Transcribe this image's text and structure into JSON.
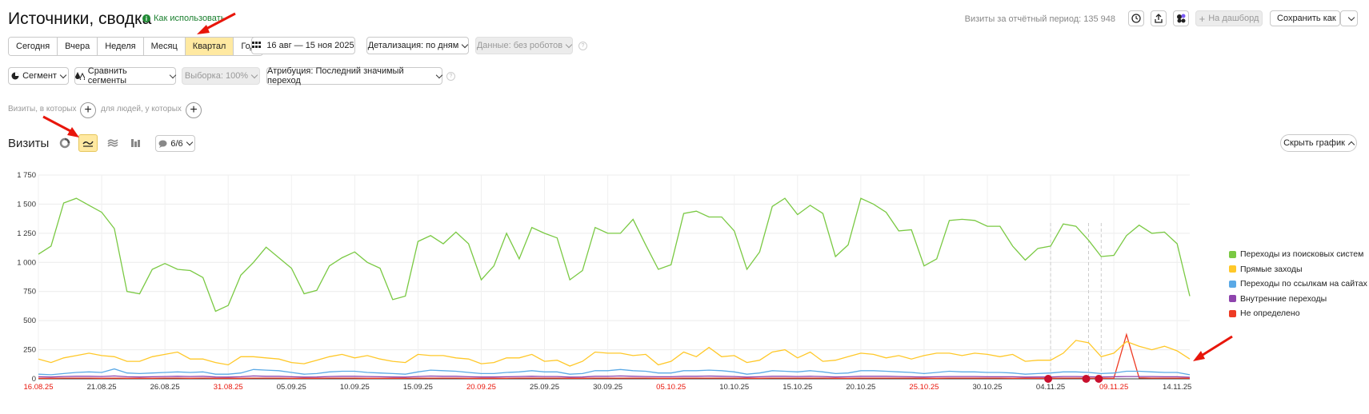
{
  "header": {
    "title": "Источники, сводка",
    "how_to_use": "Как использовать",
    "visits_period": "Визиты за отчётный период: 135 948",
    "to_dashboard": "На дашборд",
    "save_as": "Сохранить как"
  },
  "period_tabs": [
    {
      "label": "Сегодня"
    },
    {
      "label": "Вчера"
    },
    {
      "label": "Неделя"
    },
    {
      "label": "Месяц"
    },
    {
      "label": "Квартал",
      "active": true
    },
    {
      "label": "Год"
    }
  ],
  "date_range": "16 авг — 15 ноя 2025",
  "detail": "Детализация: по дням",
  "data_filter": "Данные: без роботов",
  "segment": "Сегмент",
  "compare_segments": "Сравнить сегменты",
  "sample": "Выборка: 100%",
  "attribution": "Атрибуция: Последний значимый переход",
  "filters": {
    "visits_where": "Визиты, в которых",
    "people_where": "для людей, у которых"
  },
  "chart_section": {
    "title": "Визиты",
    "series_counter": "6/6",
    "hide_chart": "Скрыть график"
  },
  "colors": {
    "search": "#7ac943",
    "direct": "#ffc829",
    "referral": "#5aa9e6",
    "internal": "#8e44ad",
    "unknown": "#ee3b24",
    "accent": "#ffe9a1"
  },
  "chart_data": {
    "type": "line",
    "ylim": [
      0,
      1750
    ],
    "yticks": [
      "1 750",
      "1 500",
      "1 250",
      "1 000",
      "750",
      "500",
      "250",
      "0"
    ],
    "xtick_labels": [
      {
        "label": "16.08.25",
        "red": true
      },
      {
        "label": "21.08.25"
      },
      {
        "label": "26.08.25"
      },
      {
        "label": "31.08.25",
        "red": true
      },
      {
        "label": "05.09.25"
      },
      {
        "label": "10.09.25"
      },
      {
        "label": "15.09.25"
      },
      {
        "label": "20.09.25",
        "red": true
      },
      {
        "label": "25.09.25"
      },
      {
        "label": "30.09.25"
      },
      {
        "label": "05.10.25",
        "red": true
      },
      {
        "label": "10.10.25"
      },
      {
        "label": "15.10.25"
      },
      {
        "label": "20.10.25"
      },
      {
        "label": "25.10.25",
        "red": true
      },
      {
        "label": "30.10.25"
      },
      {
        "label": "04.11.25"
      },
      {
        "label": "09.11.25",
        "red": true
      },
      {
        "label": "14.11.25"
      }
    ],
    "series": [
      {
        "name": "Переходы из поисковых систем",
        "color": "#7ac943",
        "values": [
          1070,
          1140,
          1510,
          1550,
          1490,
          1430,
          1290,
          750,
          730,
          940,
          990,
          940,
          930,
          870,
          580,
          630,
          890,
          1000,
          1130,
          1040,
          950,
          730,
          760,
          970,
          1040,
          1090,
          1000,
          950,
          680,
          710,
          1180,
          1230,
          1160,
          1260,
          1160,
          850,
          970,
          1250,
          1030,
          1300,
          1250,
          1210,
          850,
          930,
          1300,
          1250,
          1250,
          1370,
          1150,
          940,
          980,
          1420,
          1440,
          1390,
          1390,
          1270,
          940,
          1090,
          1480,
          1550,
          1410,
          1490,
          1420,
          1050,
          1150,
          1550,
          1500,
          1430,
          1270,
          1280,
          970,
          1030,
          1360,
          1370,
          1360,
          1310,
          1310,
          1140,
          1020,
          1120,
          1140,
          1330,
          1310,
          1190,
          1050,
          1060,
          1230,
          1320,
          1250,
          1260,
          1160,
          710
        ]
      },
      {
        "name": "Прямые заходы",
        "color": "#ffc829",
        "values": [
          170,
          140,
          180,
          200,
          220,
          200,
          190,
          150,
          150,
          190,
          210,
          230,
          170,
          170,
          140,
          120,
          190,
          190,
          180,
          170,
          140,
          130,
          160,
          190,
          210,
          180,
          200,
          170,
          150,
          140,
          210,
          200,
          200,
          180,
          170,
          130,
          140,
          180,
          180,
          210,
          150,
          160,
          110,
          150,
          230,
          220,
          220,
          200,
          210,
          120,
          150,
          230,
          190,
          270,
          190,
          200,
          140,
          160,
          230,
          250,
          180,
          230,
          150,
          160,
          190,
          220,
          210,
          180,
          200,
          170,
          200,
          220,
          220,
          200,
          220,
          210,
          190,
          210,
          150,
          160,
          160,
          220,
          330,
          310,
          190,
          220,
          320,
          280,
          250,
          280,
          240,
          170
        ]
      },
      {
        "name": "Переходы по ссылкам на сайтах",
        "color": "#5aa9e6",
        "values": [
          40,
          35,
          45,
          55,
          60,
          55,
          85,
          50,
          45,
          50,
          55,
          60,
          55,
          60,
          40,
          40,
          50,
          80,
          75,
          70,
          55,
          40,
          45,
          60,
          65,
          65,
          55,
          50,
          45,
          40,
          60,
          75,
          70,
          65,
          55,
          45,
          45,
          55,
          60,
          70,
          60,
          60,
          40,
          45,
          70,
          70,
          80,
          70,
          65,
          50,
          50,
          70,
          70,
          75,
          70,
          60,
          40,
          50,
          70,
          65,
          60,
          70,
          60,
          45,
          50,
          70,
          70,
          65,
          60,
          55,
          45,
          55,
          65,
          60,
          60,
          55,
          55,
          50,
          40,
          45,
          50,
          60,
          60,
          55,
          45,
          50,
          65,
          65,
          60,
          55,
          55,
          35
        ]
      },
      {
        "name": "Внутренние переходы",
        "color": "#8e44ad",
        "values": [
          18,
          16,
          20,
          22,
          22,
          20,
          25,
          18,
          16,
          18,
          20,
          22,
          20,
          22,
          16,
          15,
          18,
          25,
          22,
          22,
          18,
          15,
          16,
          20,
          22,
          22,
          20,
          18,
          16,
          15,
          20,
          24,
          22,
          22,
          18,
          16,
          16,
          18,
          20,
          22,
          20,
          20,
          15,
          16,
          22,
          22,
          25,
          22,
          20,
          18,
          18,
          22,
          22,
          24,
          22,
          20,
          15,
          18,
          22,
          22,
          20,
          22,
          20,
          16,
          18,
          22,
          22,
          22,
          20,
          18,
          16,
          18,
          20,
          20,
          20,
          18,
          18,
          18,
          15,
          16,
          16,
          20,
          20,
          18,
          16,
          18,
          20,
          20,
          20,
          18,
          18,
          14
        ]
      },
      {
        "name": "Не определено",
        "color": "#ee3b24",
        "values": [
          5,
          5,
          6,
          6,
          6,
          5,
          6,
          5,
          5,
          5,
          6,
          6,
          5,
          6,
          5,
          5,
          5,
          6,
          6,
          6,
          5,
          5,
          5,
          6,
          6,
          6,
          5,
          5,
          5,
          5,
          6,
          6,
          6,
          6,
          5,
          5,
          5,
          5,
          6,
          6,
          6,
          6,
          5,
          5,
          6,
          6,
          6,
          6,
          6,
          5,
          5,
          6,
          6,
          6,
          6,
          6,
          5,
          5,
          6,
          6,
          6,
          6,
          6,
          5,
          5,
          6,
          6,
          6,
          6,
          6,
          5,
          5,
          6,
          6,
          6,
          6,
          6,
          5,
          5,
          5,
          5,
          6,
          6,
          6,
          5,
          5,
          380,
          8,
          6,
          6,
          6,
          5
        ]
      }
    ],
    "legend_position": "right",
    "grid": true
  }
}
